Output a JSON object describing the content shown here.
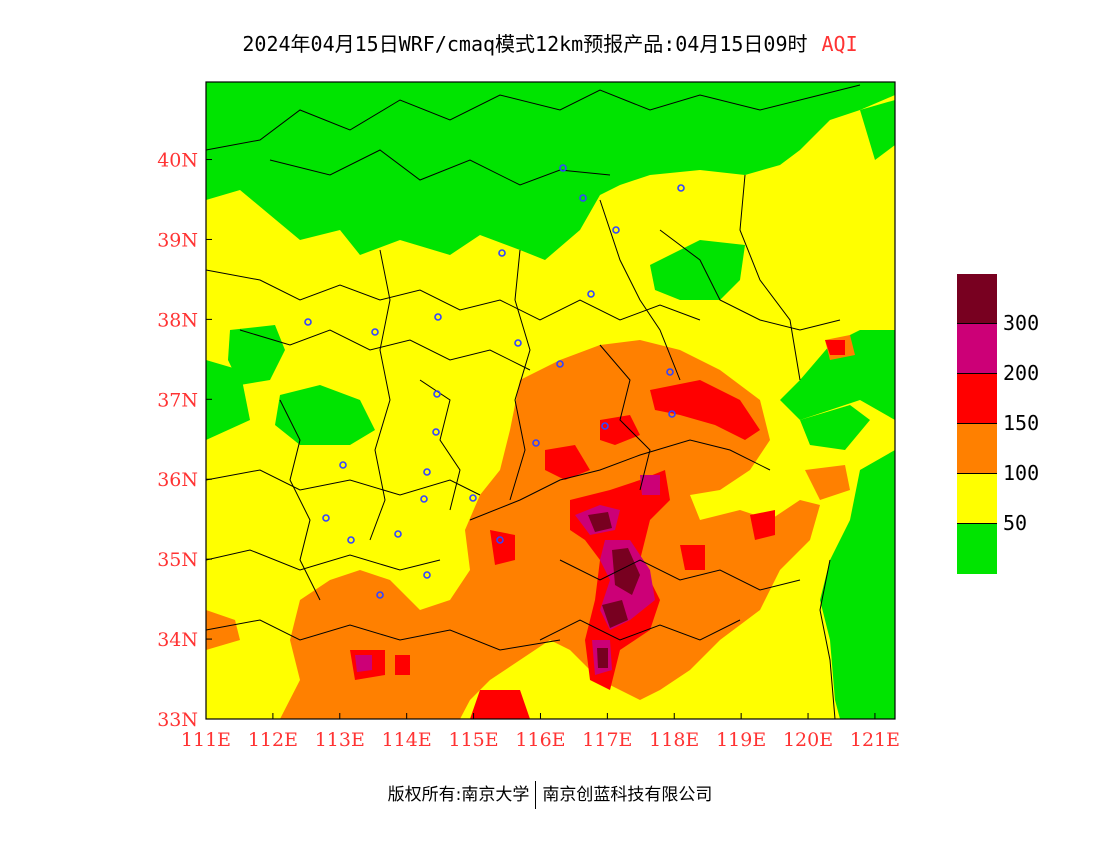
{
  "title": {
    "main": "2024年04月15日WRF/cmaq模式12km预报产品:04月15日09时",
    "product": "AQI"
  },
  "axes": {
    "x_ticks": [
      "111E",
      "112E",
      "113E",
      "114E",
      "115E",
      "116E",
      "117E",
      "118E",
      "119E",
      "120E",
      "121E"
    ],
    "y_ticks": [
      "33N",
      "34N",
      "35N",
      "36N",
      "37N",
      "38N",
      "39N",
      "40N"
    ],
    "lon_range": [
      111,
      121.3
    ],
    "lat_range": [
      33,
      40.97
    ]
  },
  "legend": {
    "labels": [
      "300",
      "200",
      "150",
      "100",
      "50"
    ],
    "levels": [
      {
        "min": 300,
        "color": "#780020"
      },
      {
        "min": 200,
        "color": "#cc0077"
      },
      {
        "min": 150,
        "color": "#ff0000"
      },
      {
        "min": 100,
        "color": "#ff8000"
      },
      {
        "min": 50,
        "color": "#ffff00"
      },
      {
        "min": 0,
        "color": "#00e400"
      }
    ]
  },
  "footer": {
    "copyright": "版权所有:南京大学",
    "company": "南京创蓝科技有限公司"
  }
}
